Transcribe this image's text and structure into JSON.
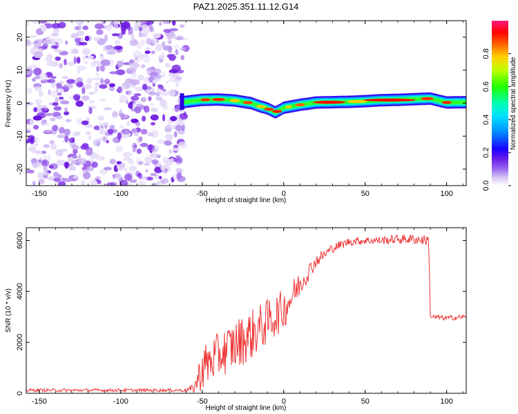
{
  "title": "PAZ1.2025.351.11.12.G14",
  "chart_data": [
    {
      "type": "heatmap",
      "name": "spectrogram",
      "xlabel": "Height of straight line (km)",
      "ylabel": "Frequency (Hz)",
      "xlim": [
        -158,
        112
      ],
      "ylim": [
        -25,
        25
      ],
      "xticks": [
        -150,
        -100,
        -50,
        0,
        50,
        100
      ],
      "yticks": [
        -20,
        -10,
        0,
        10,
        20
      ],
      "noise_region": [
        -158,
        -60
      ],
      "colorbar": {
        "label": "Normalized spectral amplitude",
        "range": [
          0,
          1
        ],
        "ticks": [
          "0.0",
          "0.2",
          "0.4",
          "0.6",
          "0.8"
        ],
        "colors": [
          "#ffffff",
          "#c9b3f0",
          "#7b2ff7",
          "#0000ff",
          "#00bfff",
          "#00ffbf",
          "#00ff00",
          "#ffff00",
          "#ff8000",
          "#ff0000",
          "#ff1a75"
        ]
      },
      "signal_ridge": {
        "x": [
          -62,
          -50,
          -40,
          -30,
          -20,
          -15,
          -10,
          -5,
          0,
          10,
          20,
          30,
          40,
          50,
          60,
          70,
          80,
          90,
          100,
          112
        ],
        "freq": [
          0.3,
          1.0,
          1.1,
          0.8,
          0.0,
          -0.9,
          -1.6,
          -2.8,
          -1.4,
          -0.5,
          0.2,
          0.3,
          0.4,
          0.6,
          0.9,
          1.0,
          1.2,
          1.4,
          0.2,
          0.3
        ]
      }
    },
    {
      "type": "line",
      "name": "snr",
      "xlabel": "Height of straight line (km)",
      "ylabel": "SNR (10 * v/v)",
      "xlim": [
        -158,
        112
      ],
      "ylim": [
        0,
        6500
      ],
      "xticks": [
        -150,
        -100,
        -50,
        0,
        50,
        100
      ],
      "yticks": [
        0,
        2000,
        4000,
        6000
      ],
      "color": "#ee3030",
      "trend": {
        "x": [
          -158,
          -60,
          -55,
          -50,
          -40,
          -30,
          -20,
          -10,
          0,
          10,
          20,
          30,
          40,
          50,
          60,
          70,
          80,
          89,
          90,
          100,
          112
        ],
        "y": [
          120,
          120,
          200,
          1000,
          1500,
          1900,
          2300,
          2800,
          3300,
          4300,
          5200,
          5700,
          5950,
          6000,
          6000,
          6050,
          6050,
          6000,
          3000,
          2950,
          3000
        ]
      },
      "noise_amplitude": {
        "x": [
          -158,
          -60,
          -55,
          -50,
          -40,
          -30,
          -20,
          -10,
          0,
          10,
          20,
          30,
          40,
          50,
          60,
          70,
          80,
          89,
          90,
          100,
          112
        ],
        "y": [
          60,
          60,
          200,
          900,
          900,
          1000,
          1000,
          900,
          800,
          500,
          250,
          180,
          160,
          160,
          160,
          180,
          200,
          200,
          100,
          100,
          100
        ]
      }
    }
  ]
}
